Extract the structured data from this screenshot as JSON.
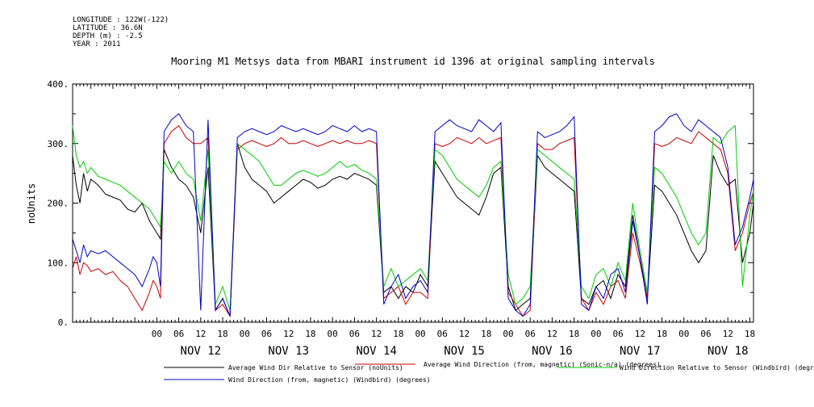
{
  "metadata": {
    "longitude": "LONGITUDE : 122W(-122)",
    "latitude": "LATITUDE : 36.6N",
    "depth": "DEPTH (m) : -2.5",
    "year": "YEAR : 2011"
  },
  "chart_data": {
    "type": "line",
    "title": "Mooring M1 Metsys data from MBARI instrument id 1396 at original sampling intervals",
    "ylabel": "noUnits",
    "xlabel": "",
    "ylim": [
      0,
      400
    ],
    "yticks": [
      "0.",
      "100.",
      "200.",
      "300.",
      "400."
    ],
    "x_unit": "hours since Nov 11 2011 00:00",
    "xlim": [
      1,
      187
    ],
    "hour_tick_labels": [
      "00",
      "06",
      "12",
      "18",
      "00",
      "06",
      "12",
      "18",
      "00",
      "06",
      "12",
      "18",
      "00",
      "06",
      "12",
      "18",
      "00",
      "06",
      "12",
      "18",
      "00",
      "06",
      "12",
      "18",
      "00",
      "06",
      "12",
      "18"
    ],
    "day_labels": [
      {
        "text": "NOV 12",
        "x": 36
      },
      {
        "text": "NOV 13",
        "x": 60
      },
      {
        "text": "NOV 14",
        "x": 84
      },
      {
        "text": "NOV 15",
        "x": 108
      },
      {
        "text": "NOV 16",
        "x": 132
      },
      {
        "text": "NOV 17",
        "x": 156
      },
      {
        "text": "NOV 18",
        "x": 180
      }
    ],
    "grid": false,
    "series": [
      {
        "name": "Average Wind Dir Relative to Sensor (noUnits)",
        "color": "#000000",
        "x": [
          1,
          2,
          3,
          4,
          5,
          6,
          8,
          10,
          12,
          14,
          16,
          18,
          20,
          22,
          23,
          24,
          25,
          26,
          28,
          30,
          32,
          34,
          36,
          38,
          40,
          42,
          44,
          46,
          48,
          50,
          52,
          54,
          56,
          58,
          60,
          62,
          64,
          66,
          68,
          70,
          72,
          74,
          76,
          78,
          80,
          82,
          84,
          86,
          88,
          90,
          92,
          94,
          96,
          98,
          100,
          102,
          104,
          106,
          108,
          110,
          112,
          114,
          116,
          118,
          120,
          122,
          124,
          126,
          128,
          130,
          132,
          134,
          136,
          138,
          140,
          142,
          144,
          146,
          148,
          150,
          152,
          154,
          156,
          158,
          160,
          162,
          164,
          166,
          168,
          170,
          172,
          174,
          176,
          178,
          180,
          182,
          184,
          186,
          187
        ],
        "y": [
          280,
          230,
          200,
          250,
          220,
          240,
          230,
          215,
          210,
          205,
          190,
          185,
          200,
          170,
          160,
          150,
          140,
          290,
          260,
          240,
          230,
          210,
          150,
          260,
          20,
          40,
          10,
          300,
          260,
          240,
          230,
          220,
          200,
          210,
          220,
          230,
          240,
          235,
          225,
          230,
          240,
          245,
          240,
          250,
          245,
          240,
          230,
          50,
          60,
          40,
          60,
          50,
          80,
          60,
          270,
          250,
          230,
          210,
          200,
          190,
          180,
          210,
          250,
          260,
          60,
          20,
          30,
          40,
          280,
          260,
          250,
          240,
          230,
          220,
          40,
          30,
          60,
          70,
          40,
          80,
          60,
          180,
          110,
          40,
          230,
          220,
          200,
          180,
          150,
          120,
          100,
          120,
          280,
          250,
          230,
          240,
          100,
          150,
          200
        ]
      },
      {
        "name": "Average Wind Direction (from, magnetic) (Sonic-n/a) (degrees)",
        "color": "#cc0000",
        "x": [
          1,
          2,
          3,
          4,
          5,
          6,
          8,
          10,
          12,
          14,
          16,
          18,
          20,
          22,
          23,
          24,
          25,
          26,
          28,
          30,
          32,
          34,
          36,
          38,
          40,
          42,
          44,
          46,
          48,
          50,
          52,
          54,
          56,
          58,
          60,
          62,
          64,
          66,
          68,
          70,
          72,
          74,
          76,
          78,
          80,
          82,
          84,
          86,
          88,
          90,
          92,
          94,
          96,
          98,
          100,
          102,
          104,
          106,
          108,
          110,
          112,
          114,
          116,
          118,
          120,
          122,
          124,
          126,
          128,
          130,
          132,
          134,
          136,
          138,
          140,
          142,
          144,
          146,
          148,
          150,
          152,
          154,
          156,
          158,
          160,
          162,
          164,
          166,
          168,
          170,
          172,
          174,
          176,
          178,
          180,
          182,
          184,
          186,
          187
        ],
        "y": [
          90,
          110,
          80,
          100,
          95,
          85,
          90,
          80,
          85,
          70,
          60,
          40,
          20,
          50,
          70,
          60,
          40,
          300,
          320,
          330,
          310,
          300,
          300,
          310,
          20,
          30,
          10,
          290,
          300,
          305,
          300,
          295,
          300,
          310,
          300,
          300,
          305,
          300,
          295,
          300,
          305,
          300,
          305,
          300,
          300,
          305,
          300,
          40,
          50,
          60,
          30,
          50,
          50,
          40,
          300,
          295,
          300,
          310,
          305,
          300,
          310,
          300,
          305,
          310,
          50,
          30,
          10,
          20,
          300,
          290,
          290,
          300,
          305,
          310,
          40,
          20,
          50,
          30,
          60,
          70,
          40,
          150,
          100,
          40,
          300,
          295,
          300,
          310,
          305,
          300,
          320,
          310,
          300,
          290,
          250,
          120,
          150,
          200,
          220
        ]
      },
      {
        "name": "Wind Direction Relative to Sensor (Windbird) (degrees)",
        "color": "#00cc00",
        "x": [
          1,
          2,
          3,
          4,
          5,
          6,
          8,
          10,
          12,
          14,
          16,
          18,
          20,
          22,
          23,
          24,
          25,
          26,
          28,
          30,
          32,
          34,
          36,
          38,
          40,
          42,
          44,
          46,
          48,
          50,
          52,
          54,
          56,
          58,
          60,
          62,
          64,
          66,
          68,
          70,
          72,
          74,
          76,
          78,
          80,
          82,
          84,
          86,
          88,
          90,
          92,
          94,
          96,
          98,
          100,
          102,
          104,
          106,
          108,
          110,
          112,
          114,
          116,
          118,
          120,
          122,
          124,
          126,
          128,
          130,
          132,
          134,
          136,
          138,
          140,
          142,
          144,
          146,
          148,
          150,
          152,
          154,
          156,
          158,
          160,
          162,
          164,
          166,
          168,
          170,
          172,
          174,
          176,
          178,
          180,
          182,
          184,
          186,
          187
        ],
        "y": [
          330,
          280,
          260,
          270,
          250,
          260,
          245,
          240,
          235,
          230,
          220,
          210,
          200,
          190,
          180,
          170,
          160,
          270,
          250,
          270,
          250,
          240,
          170,
          290,
          30,
          60,
          20,
          300,
          290,
          280,
          270,
          250,
          230,
          230,
          240,
          250,
          255,
          250,
          245,
          250,
          260,
          270,
          260,
          265,
          255,
          250,
          240,
          60,
          90,
          60,
          70,
          80,
          90,
          70,
          290,
          280,
          260,
          240,
          230,
          220,
          210,
          230,
          260,
          270,
          80,
          30,
          40,
          60,
          290,
          280,
          270,
          260,
          250,
          240,
          60,
          40,
          80,
          90,
          60,
          100,
          70,
          200,
          120,
          50,
          260,
          250,
          230,
          210,
          180,
          150,
          130,
          150,
          310,
          300,
          320,
          330,
          60,
          180,
          220
        ]
      },
      {
        "name": "Wind Direction (from, magnetic) (Windbird) (degrees)",
        "color": "#0000cc",
        "x": [
          1,
          2,
          3,
          4,
          5,
          6,
          8,
          10,
          12,
          14,
          16,
          18,
          20,
          22,
          23,
          24,
          25,
          26,
          28,
          30,
          32,
          34,
          36,
          38,
          40,
          42,
          44,
          46,
          48,
          50,
          52,
          54,
          56,
          58,
          60,
          62,
          64,
          66,
          68,
          70,
          72,
          74,
          76,
          78,
          80,
          82,
          84,
          86,
          88,
          90,
          92,
          94,
          96,
          98,
          100,
          102,
          104,
          106,
          108,
          110,
          112,
          114,
          116,
          118,
          120,
          122,
          124,
          126,
          128,
          130,
          132,
          134,
          136,
          138,
          140,
          142,
          144,
          146,
          148,
          150,
          152,
          154,
          156,
          158,
          160,
          162,
          164,
          166,
          168,
          170,
          172,
          174,
          176,
          178,
          180,
          182,
          184,
          186,
          187
        ],
        "y": [
          140,
          120,
          100,
          130,
          110,
          120,
          115,
          120,
          110,
          100,
          90,
          80,
          60,
          90,
          110,
          100,
          60,
          320,
          340,
          350,
          330,
          320,
          20,
          340,
          20,
          40,
          10,
          310,
          320,
          325,
          320,
          315,
          320,
          330,
          325,
          320,
          325,
          320,
          315,
          320,
          330,
          325,
          320,
          330,
          320,
          325,
          320,
          30,
          60,
          80,
          40,
          60,
          70,
          50,
          320,
          330,
          340,
          330,
          325,
          320,
          340,
          330,
          320,
          335,
          40,
          20,
          10,
          30,
          320,
          310,
          315,
          320,
          330,
          345,
          30,
          20,
          60,
          40,
          80,
          90,
          50,
          170,
          110,
          30,
          320,
          330,
          345,
          350,
          330,
          320,
          340,
          330,
          320,
          310,
          260,
          130,
          160,
          210,
          240
        ]
      }
    ]
  }
}
